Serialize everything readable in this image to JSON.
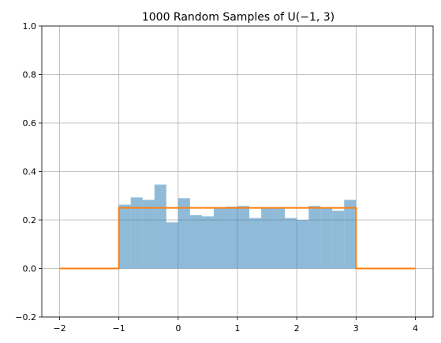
{
  "chart_data": {
    "type": "bar",
    "title": "1000 Random Samples of U(−1, 3)",
    "xlabel": "",
    "ylabel": "",
    "xlim": [
      -2.3,
      4.3
    ],
    "ylim": [
      -0.2,
      1.0
    ],
    "grid": true,
    "xticks": [
      -2,
      -1,
      0,
      1,
      2,
      3,
      4
    ],
    "yticks": [
      -0.2,
      0.0,
      0.2,
      0.4,
      0.6,
      0.8,
      1.0
    ],
    "xtick_labels": [
      "−2",
      "−1",
      "0",
      "1",
      "2",
      "3",
      "4"
    ],
    "ytick_labels": [
      "−0.2",
      "0.0",
      "0.2",
      "0.4",
      "0.6",
      "0.8",
      "1.0"
    ],
    "histogram": {
      "bin_edges": [
        -1.0,
        -0.8,
        -0.6,
        -0.4,
        -0.2,
        0.0,
        0.2,
        0.4,
        0.6,
        0.8,
        1.0,
        1.2,
        1.4,
        1.6,
        1.8,
        2.0,
        2.2,
        2.4,
        2.6,
        2.8,
        3.0
      ],
      "values": [
        0.263,
        0.293,
        0.283,
        0.346,
        0.19,
        0.29,
        0.22,
        0.215,
        0.25,
        0.255,
        0.258,
        0.208,
        0.25,
        0.25,
        0.208,
        0.2,
        0.258,
        0.25,
        0.238,
        0.283
      ],
      "color": "#1f77b4",
      "alpha": 0.5
    },
    "pdf_line": {
      "x": [
        -2,
        -1,
        -1,
        3,
        3,
        4
      ],
      "y": [
        0,
        0,
        0.25,
        0.25,
        0,
        0
      ],
      "color": "#ff7f0e"
    }
  }
}
